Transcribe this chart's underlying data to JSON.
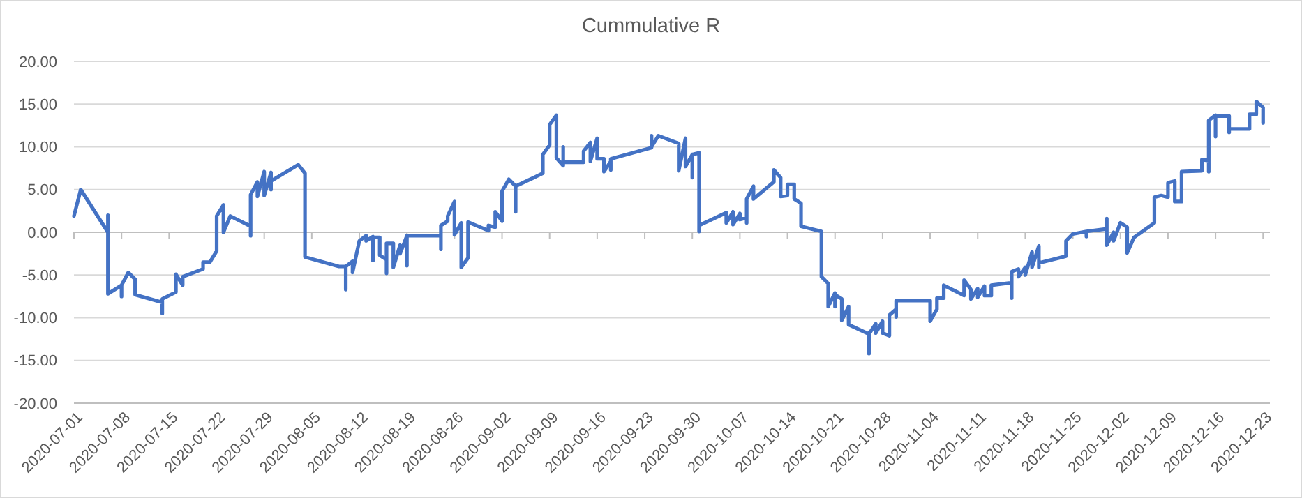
{
  "chart_data": {
    "type": "line",
    "title": "Cummulative R",
    "xlim": [
      "2020-07-01",
      "2020-12-24"
    ],
    "xticks": [
      "2020-07-01",
      "2020-07-08",
      "2020-07-15",
      "2020-07-22",
      "2020-07-29",
      "2020-08-05",
      "2020-08-12",
      "2020-08-19",
      "2020-08-26",
      "2020-09-02",
      "2020-09-09",
      "2020-09-16",
      "2020-09-23",
      "2020-09-30",
      "2020-10-07",
      "2020-10-14",
      "2020-10-21",
      "2020-10-28",
      "2020-11-04",
      "2020-11-11",
      "2020-11-18",
      "2020-11-25",
      "2020-12-02",
      "2020-12-09",
      "2020-12-16",
      "2020-12-23"
    ],
    "ylim": [
      -20,
      20
    ],
    "yticks": [
      {
        "value": -20,
        "label": "-20.00"
      },
      {
        "value": -15,
        "label": "-15.00"
      },
      {
        "value": -10,
        "label": "-10.00"
      },
      {
        "value": -5,
        "label": "-5.00"
      },
      {
        "value": 0,
        "label": "0.00"
      },
      {
        "value": 5,
        "label": "5.00"
      },
      {
        "value": 10,
        "label": "10.00"
      },
      {
        "value": 15,
        "label": "15.00"
      },
      {
        "value": 20,
        "label": "20.00"
      }
    ],
    "grid": "y",
    "marker": "none",
    "line_style": "solid",
    "series": [
      {
        "color": "#4472c4",
        "x": [
          "2020-07-01",
          "2020-07-02",
          "2020-07-06",
          "2020-07-06",
          "2020-07-06",
          "2020-07-08",
          "2020-07-08",
          "2020-07-08",
          "2020-07-09",
          "2020-07-10",
          "2020-07-10",
          "2020-07-14",
          "2020-07-14",
          "2020-07-14",
          "2020-07-16",
          "2020-07-16",
          "2020-07-17",
          "2020-07-17",
          "2020-07-20",
          "2020-07-20",
          "2020-07-21",
          "2020-07-22",
          "2020-07-22",
          "2020-07-23",
          "2020-07-23",
          "2020-07-24",
          "2020-07-27",
          "2020-07-27",
          "2020-07-27",
          "2020-07-28",
          "2020-07-28",
          "2020-07-29",
          "2020-07-29",
          "2020-07-30",
          "2020-07-30",
          "2020-07-30",
          "2020-08-03",
          "2020-08-04",
          "2020-08-04",
          "2020-08-09",
          "2020-08-10",
          "2020-08-10",
          "2020-08-10",
          "2020-08-11",
          "2020-08-11",
          "2020-08-12",
          "2020-08-13",
          "2020-08-13",
          "2020-08-14",
          "2020-08-14",
          "2020-08-14",
          "2020-08-15",
          "2020-08-15",
          "2020-08-16",
          "2020-08-16",
          "2020-08-16",
          "2020-08-17",
          "2020-08-17",
          "2020-08-18",
          "2020-08-18",
          "2020-08-19",
          "2020-08-19",
          "2020-08-19",
          "2020-08-24",
          "2020-08-24",
          "2020-08-24",
          "2020-08-25",
          "2020-08-25",
          "2020-08-26",
          "2020-08-26",
          "2020-08-27",
          "2020-08-27",
          "2020-08-28",
          "2020-08-28",
          "2020-08-31",
          "2020-08-31",
          "2020-09-01",
          "2020-09-01",
          "2020-09-02",
          "2020-09-02",
          "2020-09-03",
          "2020-09-04",
          "2020-09-04",
          "2020-09-04",
          "2020-09-08",
          "2020-09-08",
          "2020-09-09",
          "2020-09-09",
          "2020-09-10",
          "2020-09-10",
          "2020-09-11",
          "2020-09-11",
          "2020-09-11",
          "2020-09-14",
          "2020-09-14",
          "2020-09-15",
          "2020-09-15",
          "2020-09-16",
          "2020-09-16",
          "2020-09-17",
          "2020-09-17",
          "2020-09-18",
          "2020-09-18",
          "2020-09-18",
          "2020-09-24",
          "2020-09-24",
          "2020-09-24",
          "2020-09-25",
          "2020-09-28",
          "2020-09-28",
          "2020-09-29",
          "2020-09-29",
          "2020-09-30",
          "2020-09-30",
          "2020-09-30",
          "2020-10-01",
          "2020-10-01",
          "2020-10-01",
          "2020-10-05",
          "2020-10-05",
          "2020-10-06",
          "2020-10-06",
          "2020-10-07",
          "2020-10-07",
          "2020-10-08",
          "2020-10-08",
          "2020-10-08",
          "2020-10-09",
          "2020-10-09",
          "2020-10-12",
          "2020-10-12",
          "2020-10-13",
          "2020-10-13",
          "2020-10-14",
          "2020-10-14",
          "2020-10-15",
          "2020-10-15",
          "2020-10-16",
          "2020-10-16",
          "2020-10-19",
          "2020-10-19",
          "2020-10-20",
          "2020-10-20",
          "2020-10-21",
          "2020-10-21",
          "2020-10-21",
          "2020-10-22",
          "2020-10-22",
          "2020-10-23",
          "2020-10-23",
          "2020-10-26",
          "2020-10-26",
          "2020-10-26",
          "2020-10-27",
          "2020-10-27",
          "2020-10-28",
          "2020-10-28",
          "2020-10-29",
          "2020-10-29",
          "2020-10-30",
          "2020-10-30",
          "2020-10-30",
          "2020-11-04",
          "2020-11-04",
          "2020-11-05",
          "2020-11-05",
          "2020-11-06",
          "2020-11-06",
          "2020-11-09",
          "2020-11-09",
          "2020-11-10",
          "2020-11-10",
          "2020-11-11",
          "2020-11-11",
          "2020-11-12",
          "2020-11-12",
          "2020-11-13",
          "2020-11-13",
          "2020-11-16",
          "2020-11-16",
          "2020-11-16",
          "2020-11-17",
          "2020-11-17",
          "2020-11-18",
          "2020-11-18",
          "2020-11-19",
          "2020-11-19",
          "2020-11-20",
          "2020-11-20",
          "2020-11-20",
          "2020-11-24",
          "2020-11-24",
          "2020-11-25",
          "2020-11-27",
          "2020-11-27",
          "2020-11-27",
          "2020-11-30",
          "2020-11-30",
          "2020-11-30",
          "2020-12-01",
          "2020-12-01",
          "2020-12-02",
          "2020-12-03",
          "2020-12-03",
          "2020-12-04",
          "2020-12-07",
          "2020-12-07",
          "2020-12-08",
          "2020-12-09",
          "2020-12-09",
          "2020-12-10",
          "2020-12-10",
          "2020-12-11",
          "2020-12-11",
          "2020-12-14",
          "2020-12-14",
          "2020-12-15",
          "2020-12-15",
          "2020-12-15",
          "2020-12-16",
          "2020-12-16",
          "2020-12-16",
          "2020-12-18",
          "2020-12-18",
          "2020-12-18",
          "2020-12-21",
          "2020-12-21",
          "2020-12-22",
          "2020-12-22",
          "2020-12-23",
          "2020-12-23"
        ],
        "values": [
          1.9,
          5.0,
          0.0,
          2.0,
          -7.2,
          -6.2,
          -7.5,
          -6.2,
          -4.7,
          -5.5,
          -7.3,
          -8.2,
          -9.5,
          -7.8,
          -7.0,
          -4.9,
          -6.2,
          -5.2,
          -4.3,
          -3.5,
          -3.5,
          -2.2,
          1.9,
          3.2,
          0.0,
          1.9,
          0.7,
          -0.4,
          4.4,
          5.9,
          4.2,
          7.1,
          4.3,
          7.0,
          5.0,
          6.0,
          7.9,
          6.9,
          -2.9,
          -4.0,
          -4.0,
          -6.7,
          -4.0,
          -3.4,
          -4.7,
          -1.0,
          -0.4,
          -1.0,
          -0.5,
          -3.3,
          -0.6,
          -0.6,
          -2.7,
          -3.2,
          -4.8,
          -1.3,
          -1.3,
          -4.1,
          -1.5,
          -2.5,
          -0.4,
          -3.9,
          -0.4,
          -0.4,
          -2.0,
          0.8,
          1.3,
          1.9,
          3.6,
          -0.3,
          1.1,
          -4.1,
          -3.0,
          1.2,
          0.2,
          0.8,
          0.6,
          2.4,
          1.3,
          4.8,
          6.2,
          5.4,
          2.4,
          5.4,
          6.9,
          9.1,
          10.2,
          12.6,
          13.7,
          8.7,
          7.8,
          10.0,
          8.2,
          8.2,
          9.5,
          10.5,
          8.3,
          11.0,
          8.6,
          8.6,
          7.1,
          8.3,
          7.3,
          8.6,
          9.9,
          11.3,
          10.0,
          11.3,
          10.4,
          7.2,
          11.0,
          7.7,
          9.1,
          6.4,
          9.1,
          9.3,
          0.1,
          0.8,
          2.3,
          1.1,
          2.4,
          0.9,
          2.2,
          1.5,
          1.7,
          1.1,
          3.9,
          5.4,
          3.9,
          5.9,
          7.3,
          6.4,
          4.2,
          4.3,
          5.6,
          5.6,
          3.9,
          3.4,
          0.7,
          0.1,
          -5.2,
          -6.0,
          -8.7,
          -7.1,
          -8.7,
          -7.3,
          -7.8,
          -10.3,
          -8.7,
          -10.8,
          -11.9,
          -14.2,
          -11.9,
          -10.7,
          -11.8,
          -10.4,
          -11.8,
          -12.1,
          -9.7,
          -9.0,
          -9.9,
          -8.0,
          -8.0,
          -10.4,
          -9.0,
          -7.7,
          -7.7,
          -6.2,
          -7.4,
          -5.6,
          -6.7,
          -7.8,
          -6.6,
          -7.6,
          -6.3,
          -7.4,
          -7.4,
          -6.2,
          -5.9,
          -7.7,
          -4.6,
          -4.3,
          -5.2,
          -4.1,
          -5.0,
          -2.3,
          -4.1,
          -1.6,
          -4.1,
          -3.6,
          -2.8,
          -1.0,
          -0.2,
          0.1,
          -0.5,
          0.1,
          0.4,
          1.6,
          -1.5,
          0.0,
          -1.0,
          1.1,
          0.6,
          -2.4,
          -0.6,
          1.1,
          4.1,
          4.3,
          4.1,
          5.8,
          6.0,
          3.6,
          3.6,
          7.1,
          7.2,
          8.5,
          8.4,
          7.1,
          13.1,
          13.7,
          11.2,
          13.6,
          13.6,
          11.7,
          12.1,
          12.1,
          13.8,
          13.8,
          15.3,
          14.6,
          12.8
        ]
      }
    ]
  }
}
